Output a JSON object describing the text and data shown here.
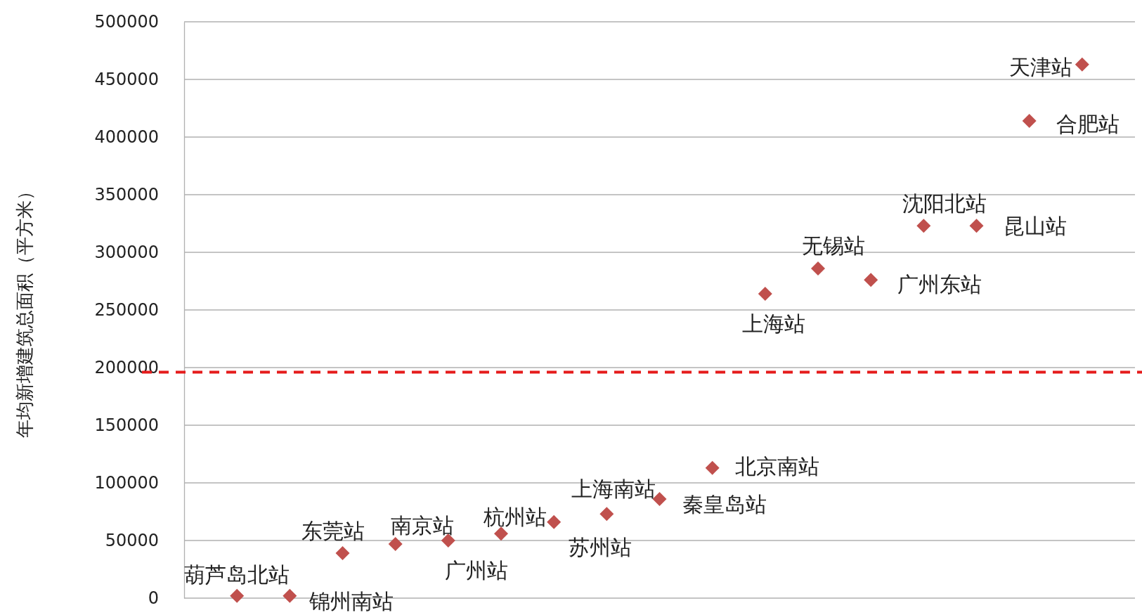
{
  "chart_data": {
    "type": "scatter",
    "ylabel": "年均新增建筑总面积（平方米）",
    "categories": [
      null,
      null,
      null,
      null,
      null,
      null,
      null,
      null,
      null,
      null,
      null,
      null,
      null,
      null,
      null,
      null,
      null
    ],
    "series": [
      {
        "color": "#c0504d",
        "values": [
          2000,
          2000,
          39000,
          47000,
          50000,
          56000,
          66000,
          73000,
          86000,
          113000,
          264000,
          286000,
          276000,
          323000,
          323000,
          414000,
          463000
        ],
        "value_labels": [
          "葫芦岛北站",
          "锦州南站",
          "东莞站",
          "南京站",
          "广州站",
          "杭州站",
          "苏州站",
          "上海南站",
          "秦皇岛站",
          "北京南站",
          "上海站",
          "无锡站",
          "广州东站",
          "沈阳北站",
          "昆山站",
          "合肥站",
          "天津站"
        ]
      }
    ],
    "ylim": [
      0,
      500000
    ],
    "yticks": [
      0,
      50000,
      100000,
      150000,
      200000,
      250000,
      300000,
      350000,
      400000,
      450000,
      500000
    ],
    "grid": "y",
    "marker": "diamond",
    "ref_lines": [
      {
        "axis": "y",
        "value": 196000,
        "color": "#e51c1c",
        "line_style": "dashed"
      }
    ]
  }
}
